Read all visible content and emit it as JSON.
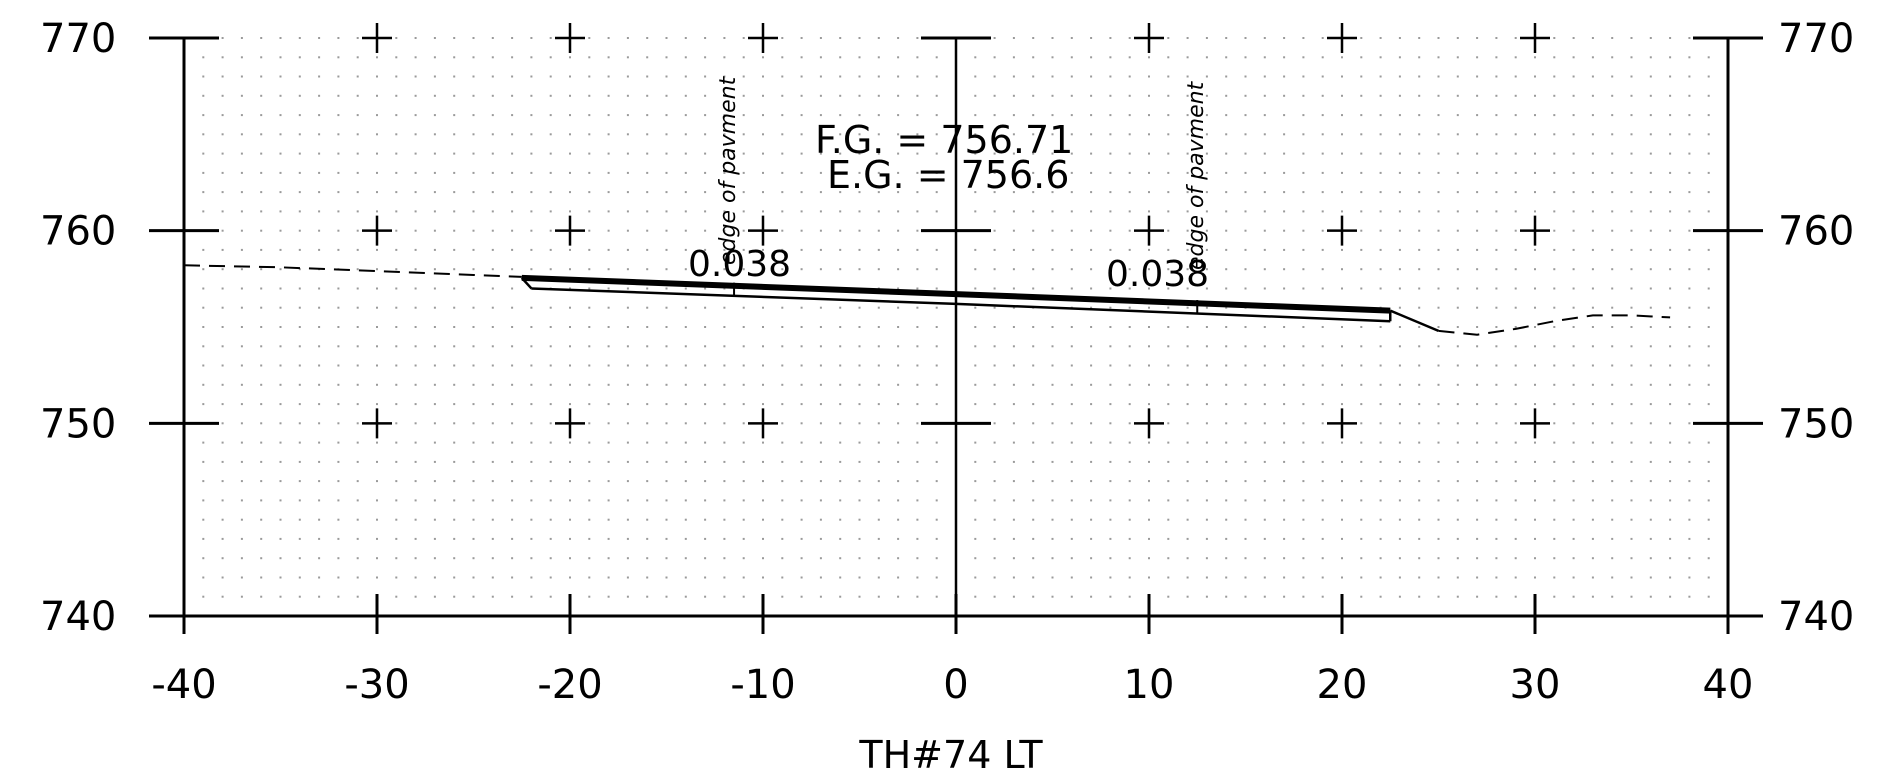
{
  "chart_data": {
    "type": "line",
    "title": "",
    "xlabel": "TH#74 LT",
    "ylabel": "",
    "xlim": [
      -40,
      40
    ],
    "ylim": [
      740,
      770
    ],
    "x_ticks": [
      "-40",
      "-30",
      "-20",
      "-10",
      "0",
      "10",
      "20",
      "30",
      "40"
    ],
    "y_ticks": [
      "740",
      "750",
      "760",
      "770"
    ],
    "grid": "dotted",
    "series": [
      {
        "style": "dashed",
        "points": [
          [
            -40,
            758.2
          ],
          [
            -35,
            758.1
          ],
          [
            -30,
            757.9
          ],
          [
            -25,
            757.7
          ],
          [
            -22.5,
            757.6
          ]
        ]
      },
      {
        "style": "solid-thick",
        "points": [
          [
            -22.5,
            757.55
          ],
          [
            0,
            756.71
          ],
          [
            22.5,
            755.85
          ]
        ]
      },
      {
        "style": "solid",
        "points": [
          [
            -22,
            757.0
          ],
          [
            0,
            756.2
          ],
          [
            22.5,
            755.3
          ]
        ]
      },
      {
        "style": "solid",
        "points": [
          [
            22.5,
            755.85
          ],
          [
            25,
            754.8
          ]
        ]
      },
      {
        "style": "dashed",
        "points": [
          [
            25,
            754.8
          ],
          [
            27,
            754.6
          ],
          [
            29,
            754.9
          ],
          [
            31,
            755.3
          ],
          [
            33,
            755.6
          ],
          [
            35,
            755.6
          ],
          [
            37,
            755.5
          ]
        ]
      }
    ],
    "annotations": {
      "fg": "F.G.  =  756.71",
      "eg": "E.G.  =  756.6",
      "slope_left": "0.038",
      "slope_right": "0.038",
      "edge_left": "edge of pavment",
      "edge_right": "edge of pavment"
    }
  }
}
